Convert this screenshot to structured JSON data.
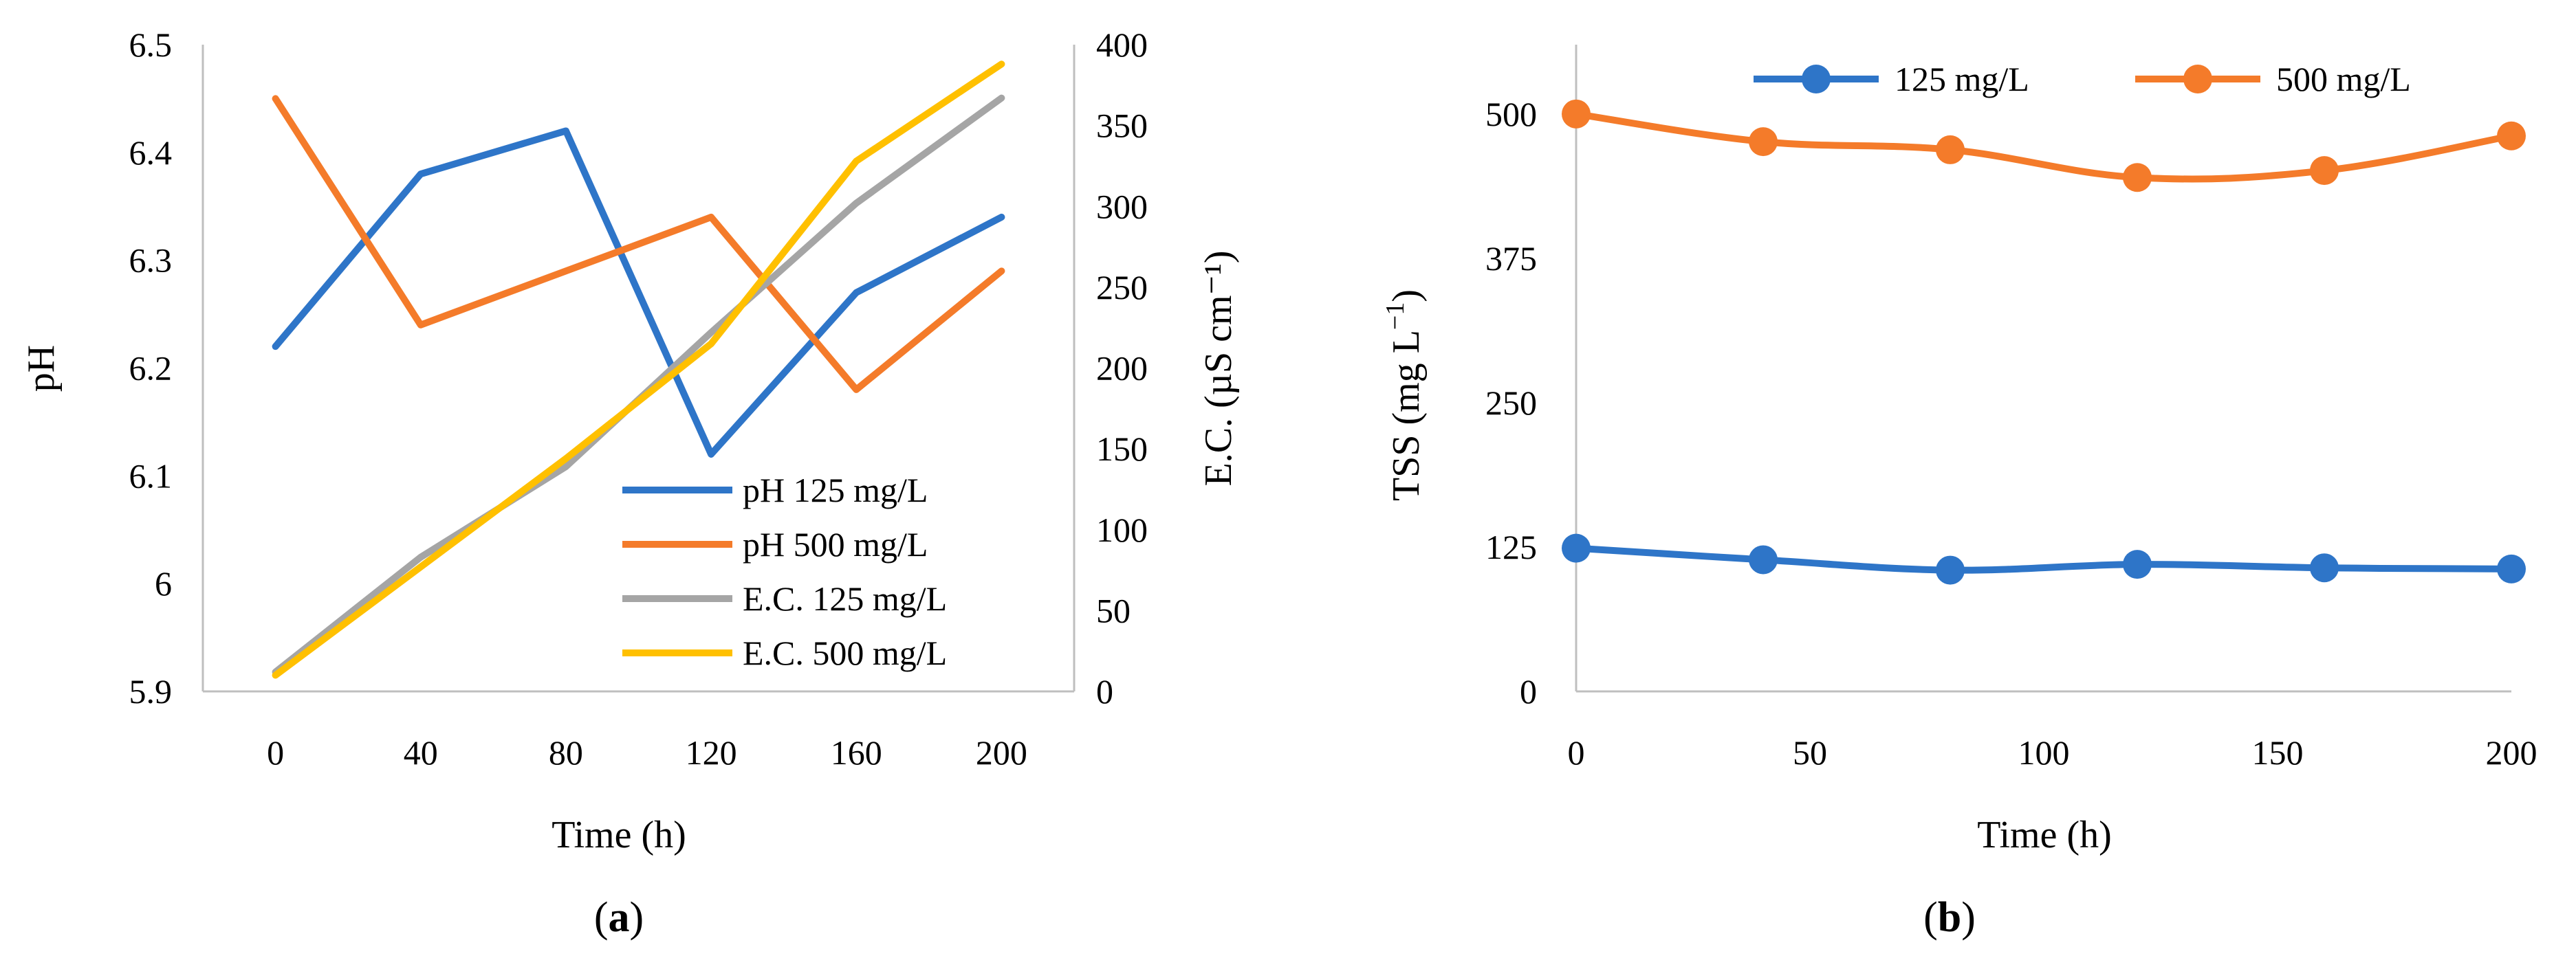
{
  "chart_data": [
    {
      "type": "line",
      "panel_label": {
        "open": "(",
        "letter": "a",
        "close": ")"
      },
      "xlabel": "Time (h)",
      "ylabel": "pH",
      "y2label": "E.C. (µS cm⁻¹)",
      "categories": [
        "0",
        "40",
        "80",
        "120",
        "160",
        "200"
      ],
      "ylim": [
        5.9,
        6.5
      ],
      "y2lim": [
        0,
        400
      ],
      "y_ticks": [
        "5.9",
        "6",
        "6.1",
        "6.2",
        "6.3",
        "6.4",
        "6.5"
      ],
      "y2_ticks": [
        "0",
        "50",
        "100",
        "150",
        "200",
        "250",
        "300",
        "350",
        "400"
      ],
      "legend_position": "bottom-right",
      "series": [
        {
          "name": "pH 125 mg/L",
          "axis": "left",
          "color": "#2E75C8",
          "values": [
            6.22,
            6.38,
            6.42,
            6.12,
            6.27,
            6.34
          ]
        },
        {
          "name": "pH 500 mg/L",
          "axis": "left",
          "color": "#F47B2A",
          "values": [
            6.45,
            6.24,
            6.29,
            6.34,
            6.18,
            6.29
          ]
        },
        {
          "name": "E.C. 125 mg/L",
          "axis": "right",
          "color": "#A5A5A5",
          "values": [
            12,
            83,
            139,
            222,
            302,
            367
          ]
        },
        {
          "name": "E.C. 500 mg/L",
          "axis": "right",
          "color": "#FFC000",
          "values": [
            10,
            77,
            144,
            215,
            328,
            388
          ]
        }
      ]
    },
    {
      "type": "line",
      "panel_label": {
        "open": "(",
        "letter": "b",
        "close": ")"
      },
      "xlabel": "Time (h)",
      "ylabel_main": "TSS (mg L",
      "ylabel_sup": "−1",
      "ylabel_end": ")",
      "x": [
        0,
        40,
        80,
        120,
        160,
        200
      ],
      "xlim": [
        0,
        200
      ],
      "x_ticks": [
        "0",
        "50",
        "100",
        "150",
        "200"
      ],
      "ylim": [
        0,
        560
      ],
      "y_ticks": [
        "0",
        "125",
        "250",
        "375",
        "500"
      ],
      "legend_position": "top",
      "series": [
        {
          "name": "125 mg/L",
          "color": "#2E75C8",
          "values": [
            124,
            114,
            105,
            110,
            107,
            106
          ]
        },
        {
          "name": "500 mg/L",
          "color": "#F47B2A",
          "values": [
            500,
            476,
            469,
            445,
            451,
            481
          ]
        }
      ]
    }
  ]
}
